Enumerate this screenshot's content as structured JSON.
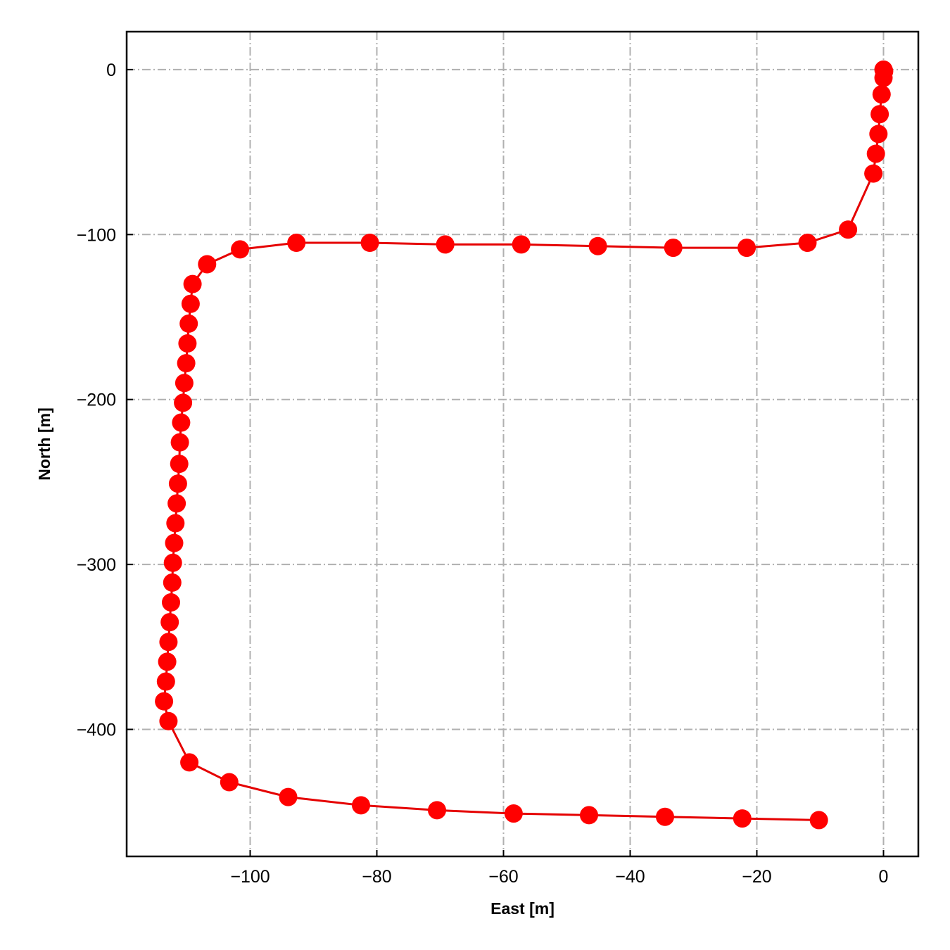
{
  "chart_data": {
    "type": "line",
    "xlabel": "East [m]",
    "ylabel": "North [m]",
    "xlim": [
      -119.5,
      5.5
    ],
    "ylim": [
      -477,
      23
    ],
    "xticks": [
      -100,
      -80,
      -60,
      -40,
      -20,
      0
    ],
    "yticks": [
      0,
      -100,
      -200,
      -300,
      -400
    ],
    "xtick_labels": [
      "−100",
      "−80",
      "−60",
      "−40",
      "−20",
      "0"
    ],
    "ytick_labels": [
      "0",
      "−100",
      "−200",
      "−300",
      "−400"
    ],
    "grid": true,
    "legend": "none",
    "line_color": "#e50000",
    "marker_color": "#ff0000",
    "series": [
      {
        "x": [
          0,
          0.1,
          0,
          -0.3,
          -0.6,
          -0.8,
          -1.2,
          -1.6,
          -5.6,
          -12.0,
          -21.6,
          -33.2,
          -45.1,
          -57.2,
          -69.2,
          -81.1,
          -92.7,
          -101.6,
          -106.8,
          -109.1,
          -109.4,
          -109.7,
          -109.9,
          -110.1,
          -110.4,
          -110.6,
          -110.9,
          -111.1,
          -111.2,
          -111.4,
          -111.6,
          -111.8,
          -112.0,
          -112.2,
          -112.3,
          -112.5,
          -112.7,
          -112.9,
          -113.1,
          -113.3,
          -113.6,
          -112.9,
          -109.6,
          -103.3,
          -94.0,
          -82.5,
          -70.5,
          -58.4,
          -46.5,
          -34.5,
          -22.3,
          -10.2
        ],
        "y": [
          0,
          -1,
          -5,
          -15,
          -27,
          -39,
          -51,
          -63,
          -97,
          -105,
          -108,
          -108,
          -107,
          -106,
          -106,
          -105,
          -105,
          -109,
          -118,
          -130,
          -142,
          -154,
          -166,
          -178,
          -190,
          -202,
          -214,
          -226,
          -239,
          -251,
          -263,
          -275,
          -287,
          -299,
          -311,
          -323,
          -335,
          -347,
          -359,
          -371,
          -383,
          -395,
          -420,
          -432,
          -441,
          -446,
          -449,
          -451,
          -452,
          -453,
          -454,
          -455
        ]
      }
    ]
  }
}
